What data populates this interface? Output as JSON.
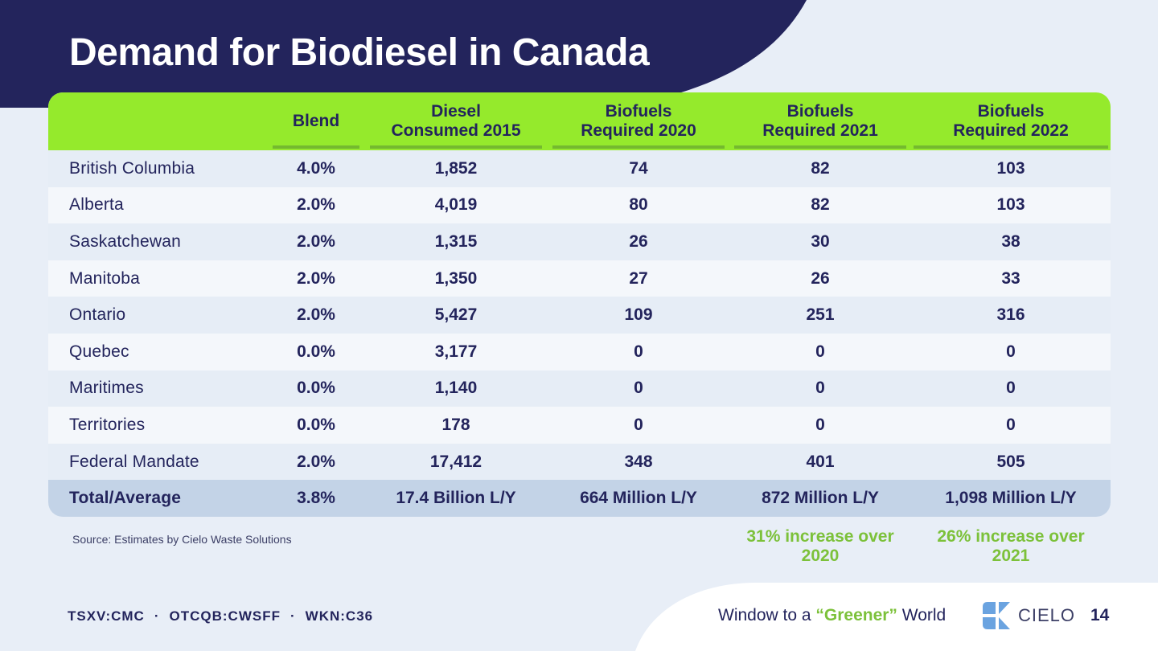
{
  "title": "Demand for Biodiesel in Canada",
  "table": {
    "headers": [
      "",
      "Blend",
      "Diesel\nConsumed 2015",
      "Biofuels\nRequired 2020",
      "Biofuels\nRequired 2021",
      "Biofuels\nRequired 2022"
    ],
    "rows": [
      [
        "British Columbia",
        "4.0%",
        "1,852",
        "74",
        "82",
        "103"
      ],
      [
        "Alberta",
        "2.0%",
        "4,019",
        "80",
        "82",
        "103"
      ],
      [
        "Saskatchewan",
        "2.0%",
        "1,315",
        "26",
        "30",
        "38"
      ],
      [
        "Manitoba",
        "2.0%",
        "1,350",
        "27",
        "26",
        "33"
      ],
      [
        "Ontario",
        "2.0%",
        "5,427",
        "109",
        "251",
        "316"
      ],
      [
        "Quebec",
        "0.0%",
        "3,177",
        "0",
        "0",
        "0"
      ],
      [
        "Maritimes",
        "0.0%",
        "1,140",
        "0",
        "0",
        "0"
      ],
      [
        "Territories",
        "0.0%",
        "178",
        "0",
        "0",
        "0"
      ],
      [
        "Federal Mandate",
        "2.0%",
        "17,412",
        "348",
        "401",
        "505"
      ]
    ],
    "total": [
      "Total/Average",
      "3.8%",
      "17.4 Billion L/Y",
      "664 Million L/Y",
      "872 Million L/Y",
      "1,098 Million L/Y"
    ]
  },
  "source": "Source: Estimates by Cielo Waste Solutions",
  "increase_2021": "31% increase over 2020",
  "increase_2022": "26% increase over 2021",
  "footer": {
    "tickers": [
      "TSXV:CMC",
      "OTCQB:CWSFF",
      "WKN:C36"
    ],
    "tagline_pre": "Window to a ",
    "tagline_highlight": "“Greener”",
    "tagline_post": " World",
    "logo_text": "CIELO",
    "page_number": "14"
  },
  "colors": {
    "navy": "#23245c",
    "green_header": "#95ea2c",
    "green_text": "#7cc13a",
    "background": "#e8eef7"
  },
  "icons": [
    "cielo-logo-icon"
  ]
}
